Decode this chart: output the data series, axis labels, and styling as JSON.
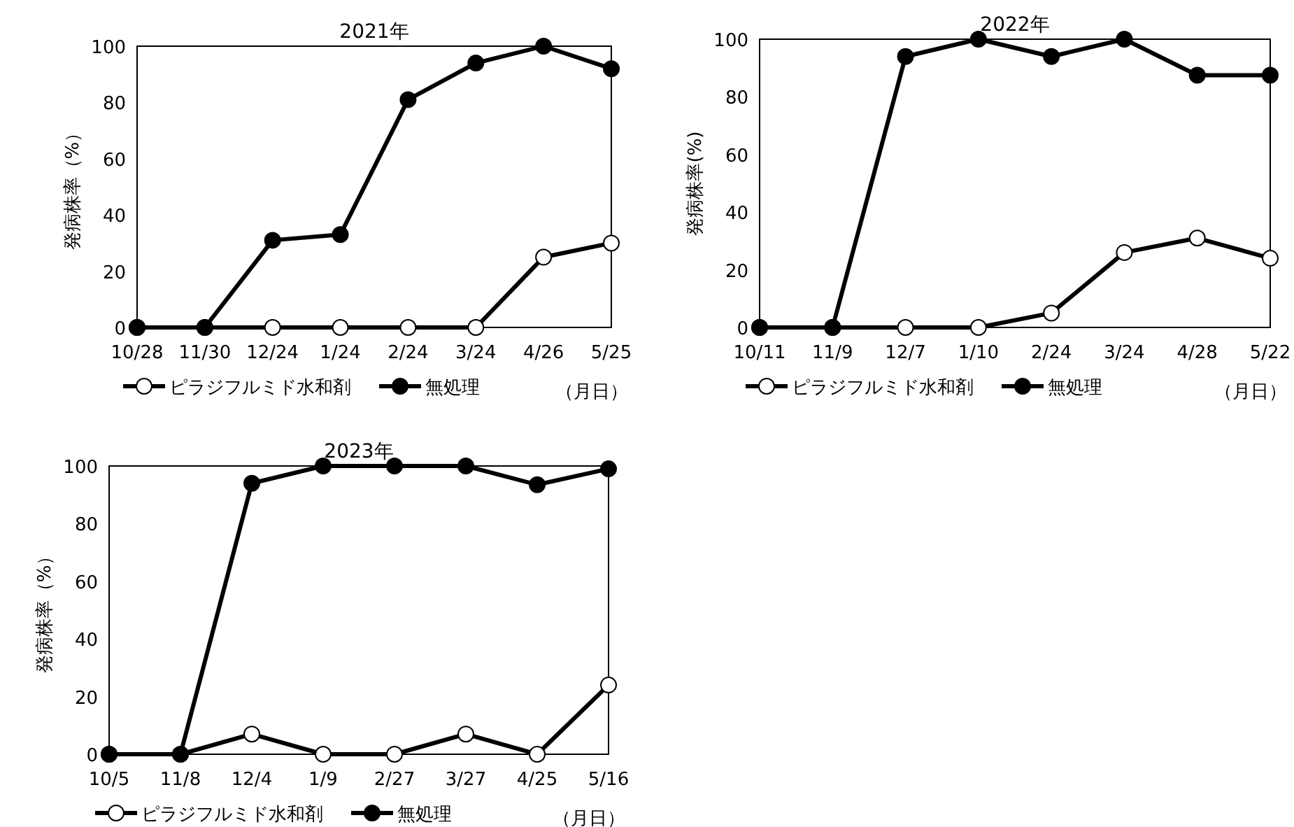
{
  "chart_data": [
    {
      "type": "line",
      "title": "2021年",
      "ylabel": "発病株率（%）",
      "categories": [
        "10/28",
        "11/30",
        "12/24",
        "1/24",
        "2/24",
        "3/24",
        "4/26",
        "5/25"
      ],
      "ylim": [
        0,
        100
      ],
      "yticks": [
        0,
        20,
        40,
        60,
        80,
        100
      ],
      "grid": false,
      "legend": "bottom",
      "marker": "circle",
      "line_style": "solid",
      "annotations": [
        "（月日）"
      ],
      "series": [
        {
          "name": "ピラジフルミド水和剤",
          "color": "#ffffff",
          "values": [
            0,
            0,
            0,
            0,
            0,
            0,
            25,
            30
          ]
        },
        {
          "name": "無処理",
          "color": "#000000",
          "values": [
            0,
            0,
            31,
            33,
            81,
            94,
            100,
            92
          ]
        }
      ]
    },
    {
      "type": "line",
      "title": "2022年",
      "ylabel": "発病株率(%)",
      "categories": [
        "10/11",
        "11/9",
        "12/7",
        "1/10",
        "2/24",
        "3/24",
        "4/28",
        "5/22"
      ],
      "ylim": [
        0,
        100
      ],
      "yticks": [
        0,
        20,
        40,
        60,
        80,
        100
      ],
      "grid": false,
      "legend": "bottom",
      "marker": "circle",
      "line_style": "solid",
      "annotations": [
        "（月日）"
      ],
      "series": [
        {
          "name": "ピラジフルミド水和剤",
          "color": "#ffffff",
          "values": [
            0,
            0,
            0,
            0,
            5,
            26,
            31,
            24
          ]
        },
        {
          "name": "無処理",
          "color": "#000000",
          "values": [
            0,
            0,
            94,
            100,
            94,
            100,
            87.5,
            87.5
          ]
        }
      ]
    },
    {
      "type": "line",
      "title": "2023年",
      "ylabel": "発病株率（%）",
      "categories": [
        "10/5",
        "11/8",
        "12/4",
        "1/9",
        "2/27",
        "3/27",
        "4/25",
        "5/16"
      ],
      "ylim": [
        0,
        100
      ],
      "yticks": [
        0,
        20,
        40,
        60,
        80,
        100
      ],
      "grid": false,
      "legend": "bottom",
      "marker": "circle",
      "line_style": "solid",
      "annotations": [
        "（月日）"
      ],
      "series": [
        {
          "name": "ピラジフルミド水和剤",
          "color": "#ffffff",
          "values": [
            0,
            0,
            7,
            0,
            0,
            7,
            0,
            24
          ]
        },
        {
          "name": "無処理",
          "color": "#000000",
          "values": [
            0,
            0,
            94,
            100,
            100,
            100,
            93.5,
            99
          ]
        }
      ]
    }
  ]
}
